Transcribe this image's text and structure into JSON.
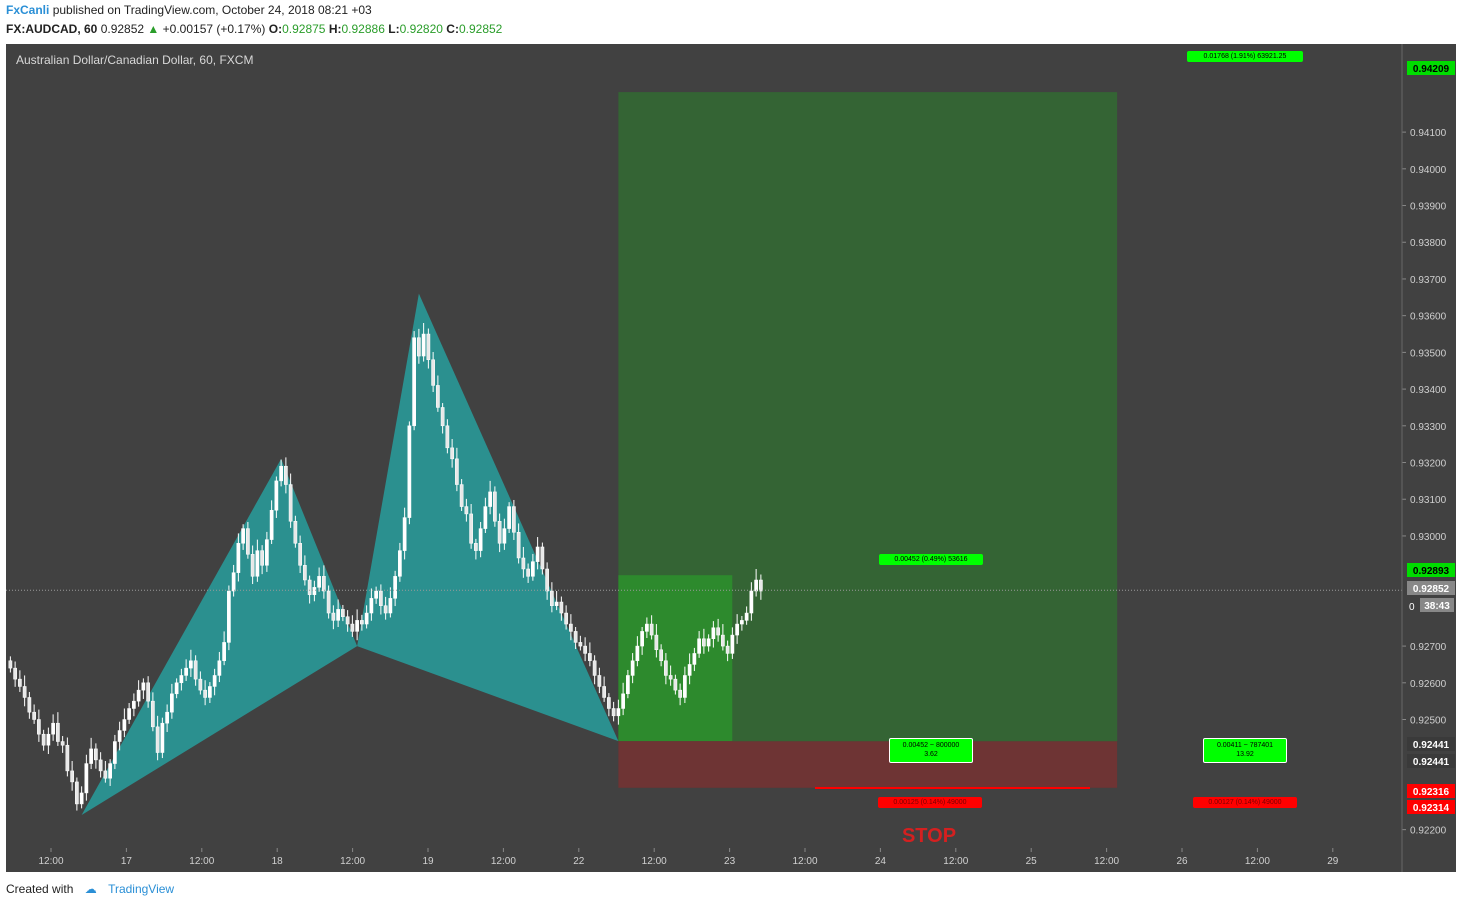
{
  "header": {
    "publisher": "FxCanli",
    "published_text": "published on TradingView.com, October 24, 2018 08:21 +03",
    "symbol": "FX:AUDCAD, 60",
    "last": "0.92852",
    "change_arrow": "▲",
    "change": "+0.00157 (+0.17%)",
    "open_label": "O:",
    "open": "0.92875",
    "high_label": "H:",
    "high": "0.92886",
    "low_label": "L:",
    "low": "0.92820",
    "close_label": "C:",
    "close": "0.92852"
  },
  "chart_title": "Australian Dollar/Canadian Dollar, 60, FXCM",
  "footer": {
    "created_with": "Created with",
    "brand": "TradingView"
  },
  "stop_label": "STOP",
  "position_labels": {
    "target_1": "0.00452 (0.49%) 53616",
    "target_2": "0.01768 (1.91%) 63921.25",
    "rr_1_line1": "0.00452 ~ 800000",
    "rr_1_line2": "3.62",
    "rr_2_line1": "0.00411 ~ 787401",
    "rr_2_line2": "13.92",
    "stop_1": "0.00125 (0.14%) 49000",
    "stop_2": "0.00127 (0.14%) 49000"
  },
  "price_tags": [
    {
      "text": "0.94209",
      "color": "#00dd00"
    },
    {
      "text": "0.92893",
      "color": "#00dd00"
    },
    {
      "text": "0.92852",
      "color": "#888888"
    },
    {
      "text": "38:43",
      "color": "#888888"
    },
    {
      "text": "0.92441",
      "color": "#3a3a3a"
    },
    {
      "text": "0.92441",
      "color": "#3a3a3a"
    },
    {
      "text": "0.92316",
      "color": "#ff0000"
    },
    {
      "text": "0.92314",
      "color": "#ff0000"
    }
  ],
  "colors": {
    "background": "#414141",
    "pattern_fill": "#2a9594",
    "target_zone_1": "#2d8a2d",
    "target_zone_2": "#346434",
    "stop_zone": "#6e3434",
    "candle": "#ffffff",
    "label_green": "#00ff00",
    "label_red": "#ff0000"
  },
  "chart_data": {
    "type": "candlestick",
    "title": "Australian Dollar/Canadian Dollar, 60, FXCM",
    "interval": "60",
    "y_ticks": [
      "0.92200",
      "0.92500",
      "0.92600",
      "0.92700",
      "0.93000",
      "0.93100",
      "0.93200",
      "0.93300",
      "0.93400",
      "0.93500",
      "0.93600",
      "0.93700",
      "0.93800",
      "0.93900",
      "0.94000",
      "0.94100"
    ],
    "x_ticks": [
      "12:00",
      "17",
      "12:00",
      "18",
      "12:00",
      "19",
      "12:00",
      "22",
      "12:00",
      "23",
      "12:00",
      "24",
      "12:00",
      "25",
      "12:00",
      "26",
      "12:00",
      "29"
    ],
    "ylim": [
      0.9215,
      0.9434
    ],
    "last_price": 0.92852,
    "pattern_points": [
      {
        "t": 15.5,
        "p": 0.9224
      },
      {
        "t": 57.5,
        "p": 0.9321
      },
      {
        "t": 73.5,
        "p": 0.927
      },
      {
        "t": 86.5,
        "p": 0.9366
      },
      {
        "t": 128.5,
        "p": 0.92441
      }
    ],
    "long_position_1": {
      "start_t": 128.5,
      "end_t": 152.5,
      "entry": 0.92441,
      "target": 0.92893,
      "stop": 0.92316
    },
    "long_position_2": {
      "start_t": 128.5,
      "end_t": 233.5,
      "entry": 0.92441,
      "target": 0.94209,
      "stop": 0.92314
    },
    "candles_approx_close": [
      0.9264,
      0.9261,
      0.9259,
      0.9256,
      0.9252,
      0.925,
      0.9246,
      0.9243,
      0.9246,
      0.9249,
      0.9244,
      0.9243,
      0.9236,
      0.9233,
      0.9227,
      0.923,
      0.9238,
      0.9242,
      0.9239,
      0.9236,
      0.9234,
      0.9238,
      0.9244,
      0.9247,
      0.925,
      0.9253,
      0.9255,
      0.9258,
      0.926,
      0.9255,
      0.9248,
      0.9241,
      0.9249,
      0.9252,
      0.9257,
      0.926,
      0.9262,
      0.9264,
      0.9266,
      0.9261,
      0.9258,
      0.9256,
      0.9259,
      0.9262,
      0.9266,
      0.9271,
      0.9285,
      0.929,
      0.9298,
      0.9302,
      0.9295,
      0.9289,
      0.9296,
      0.9292,
      0.9299,
      0.9307,
      0.9315,
      0.9319,
      0.9314,
      0.9304,
      0.9298,
      0.9292,
      0.9288,
      0.9284,
      0.9286,
      0.9289,
      0.9285,
      0.9279,
      0.9277,
      0.928,
      0.9278,
      0.9276,
      0.9274,
      0.9277,
      0.9276,
      0.9279,
      0.9283,
      0.9285,
      0.9281,
      0.9279,
      0.9283,
      0.9289,
      0.9296,
      0.9305,
      0.933,
      0.9354,
      0.9349,
      0.9355,
      0.9348,
      0.9341,
      0.9335,
      0.933,
      0.9324,
      0.9321,
      0.9314,
      0.9308,
      0.9306,
      0.9298,
      0.9296,
      0.9302,
      0.9308,
      0.9312,
      0.9304,
      0.9298,
      0.9302,
      0.9308,
      0.9301,
      0.9294,
      0.9291,
      0.9289,
      0.9293,
      0.9297,
      0.9291,
      0.9285,
      0.9281,
      0.9282,
      0.9279,
      0.9276,
      0.9274,
      0.9271,
      0.927,
      0.9268,
      0.9266,
      0.9262,
      0.9259,
      0.9256,
      0.9253,
      0.9251,
      0.9253,
      0.9257,
      0.9262,
      0.9266,
      0.927,
      0.9274,
      0.9276,
      0.9273,
      0.9269,
      0.9266,
      0.9262,
      0.9261,
      0.9258,
      0.9256,
      0.9262,
      0.9265,
      0.9268,
      0.9272,
      0.927,
      0.9272,
      0.9275,
      0.9273,
      0.927,
      0.9268,
      0.9273,
      0.9276,
      0.9277,
      0.9279,
      0.9285,
      0.9288,
      0.9285
    ]
  }
}
